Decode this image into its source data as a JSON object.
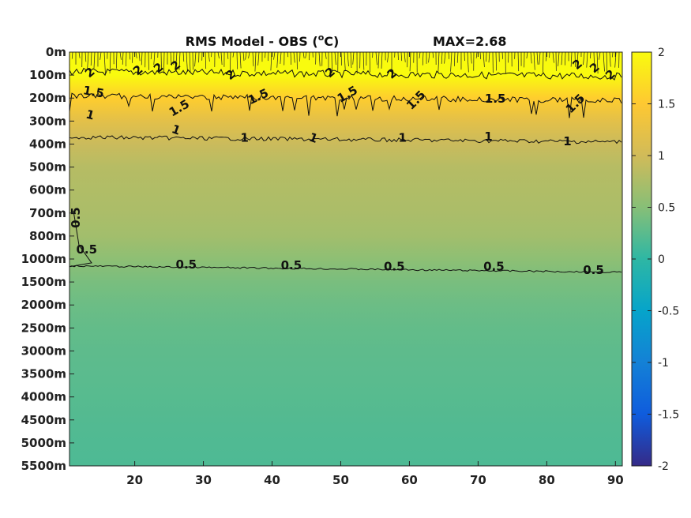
{
  "chart_data": {
    "type": "heatmap",
    "title": "RMS Model - OBS (",
    "title_sup": "o",
    "title_unit": "C)",
    "annotation": "MAX=2.68",
    "x_ticks": [
      20,
      30,
      40,
      50,
      60,
      70,
      80,
      90
    ],
    "xlim": [
      10.5,
      91
    ],
    "y_ticks": [
      "0m",
      "100m",
      "200m",
      "300m",
      "400m",
      "500m",
      "600m",
      "700m",
      "800m",
      "1000m",
      "1500m",
      "2000m",
      "2500m",
      "3000m",
      "3500m",
      "4000m",
      "4500m",
      "5000m",
      "5500m"
    ],
    "colorbar_ticks": [
      "2",
      "1.5",
      "1",
      "0.5",
      "0",
      "-0.5",
      "-1",
      "-1.5",
      "-2"
    ],
    "clim": [
      -2,
      2
    ],
    "colormap": [
      "#352a87",
      "#0f5cdd",
      "#1481d6",
      "#06a4ca",
      "#2eb7a4",
      "#87bf77",
      "#d1bb59",
      "#fec832",
      "#f9fb0e"
    ],
    "profile": [
      {
        "depth": "0m",
        "value": 2.1
      },
      {
        "depth": "100m",
        "value": 2.0
      },
      {
        "depth": "200m",
        "value": 1.55
      },
      {
        "depth": "300m",
        "value": 1.2
      },
      {
        "depth": "400m",
        "value": 0.95
      },
      {
        "depth": "500m",
        "value": 0.82
      },
      {
        "depth": "600m",
        "value": 0.78
      },
      {
        "depth": "700m",
        "value": 0.74
      },
      {
        "depth": "800m",
        "value": 0.68
      },
      {
        "depth": "1000m",
        "value": 0.55
      },
      {
        "depth": "1500m",
        "value": 0.42
      },
      {
        "depth": "2000m",
        "value": 0.35
      },
      {
        "depth": "2500m",
        "value": 0.3
      },
      {
        "depth": "3000m",
        "value": 0.27
      },
      {
        "depth": "3500m",
        "value": 0.25
      },
      {
        "depth": "4000m",
        "value": 0.23
      },
      {
        "depth": "4500m",
        "value": 0.21
      },
      {
        "depth": "5000m",
        "value": 0.19
      },
      {
        "depth": "5500m",
        "value": 0.18
      }
    ],
    "contours": [
      {
        "level": "2",
        "depth_index": 0.85
      },
      {
        "level": "1.5",
        "depth_index": 1.9
      },
      {
        "level": "1",
        "depth_index": 3.7
      },
      {
        "level": "0.5",
        "depth_index": 9.3
      }
    ],
    "contour_labels": [
      {
        "text": "2",
        "x": 13.5,
        "depth_index": 0.9,
        "angle": -40
      },
      {
        "text": "2",
        "x": 20.5,
        "depth_index": 0.8,
        "angle": -40
      },
      {
        "text": "2",
        "x": 23.5,
        "depth_index": 0.7,
        "angle": -40
      },
      {
        "text": "2",
        "x": 26,
        "depth_index": 0.6,
        "angle": -40
      },
      {
        "text": "2",
        "x": 34,
        "depth_index": 1.0,
        "angle": -40
      },
      {
        "text": "2",
        "x": 48.5,
        "depth_index": 0.9,
        "angle": -40
      },
      {
        "text": "2",
        "x": 57.5,
        "depth_index": 0.95,
        "angle": -40
      },
      {
        "text": "2",
        "x": 84.5,
        "depth_index": 0.55,
        "angle": -40
      },
      {
        "text": "2",
        "x": 87,
        "depth_index": 0.7,
        "angle": -40
      },
      {
        "text": "2",
        "x": 89.3,
        "depth_index": 1.0,
        "angle": -40
      },
      {
        "text": "1.5",
        "x": 14,
        "depth_index": 1.75,
        "angle": 10
      },
      {
        "text": "1.5",
        "x": 26.5,
        "depth_index": 2.45,
        "angle": -30
      },
      {
        "text": "1.5",
        "x": 38,
        "depth_index": 1.95,
        "angle": -25
      },
      {
        "text": "1.5",
        "x": 51,
        "depth_index": 1.85,
        "angle": -30
      },
      {
        "text": "1.5",
        "x": 61,
        "depth_index": 2.1,
        "angle": -45
      },
      {
        "text": "1.5",
        "x": 72.5,
        "depth_index": 2.05,
        "angle": 0
      },
      {
        "text": "1.5",
        "x": 84.2,
        "depth_index": 2.25,
        "angle": -45
      },
      {
        "text": "1",
        "x": 13.5,
        "depth_index": 2.75,
        "angle": 15
      },
      {
        "text": "1",
        "x": 26,
        "depth_index": 3.4,
        "angle": 20
      },
      {
        "text": "1",
        "x": 36,
        "depth_index": 3.75,
        "angle": 0
      },
      {
        "text": "1",
        "x": 46,
        "depth_index": 3.75,
        "angle": 20
      },
      {
        "text": "1",
        "x": 59,
        "depth_index": 3.75,
        "angle": 0
      },
      {
        "text": "1",
        "x": 71.5,
        "depth_index": 3.7,
        "angle": 0
      },
      {
        "text": "1",
        "x": 83,
        "depth_index": 3.9,
        "angle": 0
      },
      {
        "text": "0.5",
        "x": 11.5,
        "depth_index": 7.2,
        "angle": -90
      },
      {
        "text": "0.5",
        "x": 13,
        "depth_index": 8.6,
        "angle": 0
      },
      {
        "text": "0.5",
        "x": 27.5,
        "depth_index": 9.25,
        "angle": 0
      },
      {
        "text": "0.5",
        "x": 42.8,
        "depth_index": 9.3,
        "angle": 0
      },
      {
        "text": "0.5",
        "x": 57.8,
        "depth_index": 9.35,
        "angle": 0
      },
      {
        "text": "0.5",
        "x": 72.3,
        "depth_index": 9.35,
        "angle": 0
      },
      {
        "text": "0.5",
        "x": 86.8,
        "depth_index": 9.5,
        "angle": 0
      }
    ]
  }
}
